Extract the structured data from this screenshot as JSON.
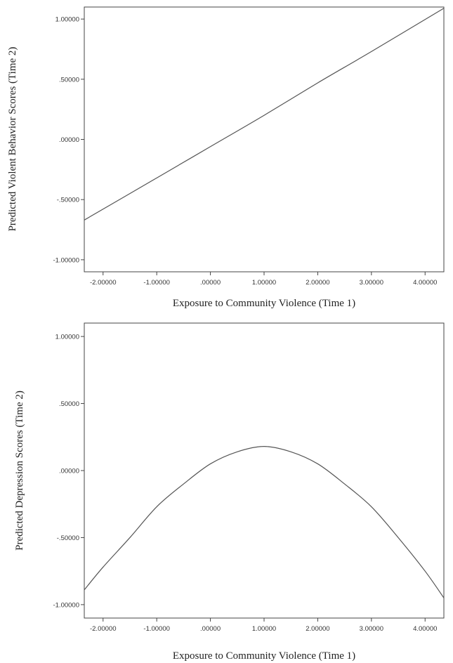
{
  "chart_data": [
    {
      "type": "line",
      "title": "",
      "xlabel": "Exposure to Community Violence (Time 1)",
      "ylabel": "Predicted Violent Behavior Scores (Time 2)",
      "xlim": [
        -2.35,
        4.35
      ],
      "ylim": [
        -1.1,
        1.1
      ],
      "x_ticks": [
        -2,
        -1,
        0,
        1,
        2,
        3,
        4
      ],
      "x_tick_labels": [
        "-2.00000",
        "-1.00000",
        ".00000",
        "1.00000",
        "2.00000",
        "3.00000",
        "4.00000"
      ],
      "y_ticks": [
        1,
        0.5,
        0,
        -0.5,
        -1
      ],
      "y_tick_labels": [
        "1.00000",
        ".50000",
        ".00000",
        "-.50000",
        "-1.00000"
      ],
      "grid": false,
      "series": [
        {
          "x": [
            -2.35,
            -1.0,
            0.0,
            1.0,
            2.0,
            3.0,
            4.35
          ],
          "y": [
            -0.67,
            -0.32,
            -0.06,
            0.2,
            0.47,
            0.73,
            1.09
          ]
        }
      ]
    },
    {
      "type": "line",
      "title": "",
      "xlabel": "Exposure to Community Violence (Time 1)",
      "ylabel": "Predicted Depression Scores (Time 2)",
      "xlim": [
        -2.35,
        4.35
      ],
      "ylim": [
        -1.1,
        1.1
      ],
      "x_ticks": [
        -2,
        -1,
        0,
        1,
        2,
        3,
        4
      ],
      "x_tick_labels": [
        "-2.00000",
        "-1.00000",
        ".00000",
        "1.00000",
        "2.00000",
        "3.00000",
        "4.00000"
      ],
      "y_ticks": [
        1,
        0.5,
        0,
        -0.5,
        -1
      ],
      "y_tick_labels": [
        "1.00000",
        ".50000",
        ".00000",
        "-.50000",
        "-1.00000"
      ],
      "grid": false,
      "series": [
        {
          "x": [
            -2.35,
            -2.0,
            -1.5,
            -1.0,
            -0.5,
            0.0,
            0.5,
            1.0,
            1.5,
            2.0,
            2.5,
            3.0,
            3.5,
            4.0,
            4.35
          ],
          "y": [
            -0.89,
            -0.72,
            -0.5,
            -0.27,
            -0.1,
            0.05,
            0.14,
            0.18,
            0.14,
            0.05,
            -0.1,
            -0.27,
            -0.5,
            -0.75,
            -0.95
          ]
        }
      ]
    }
  ],
  "colors": {
    "line": "#555555",
    "axis": "#444444",
    "text": "#333333"
  }
}
